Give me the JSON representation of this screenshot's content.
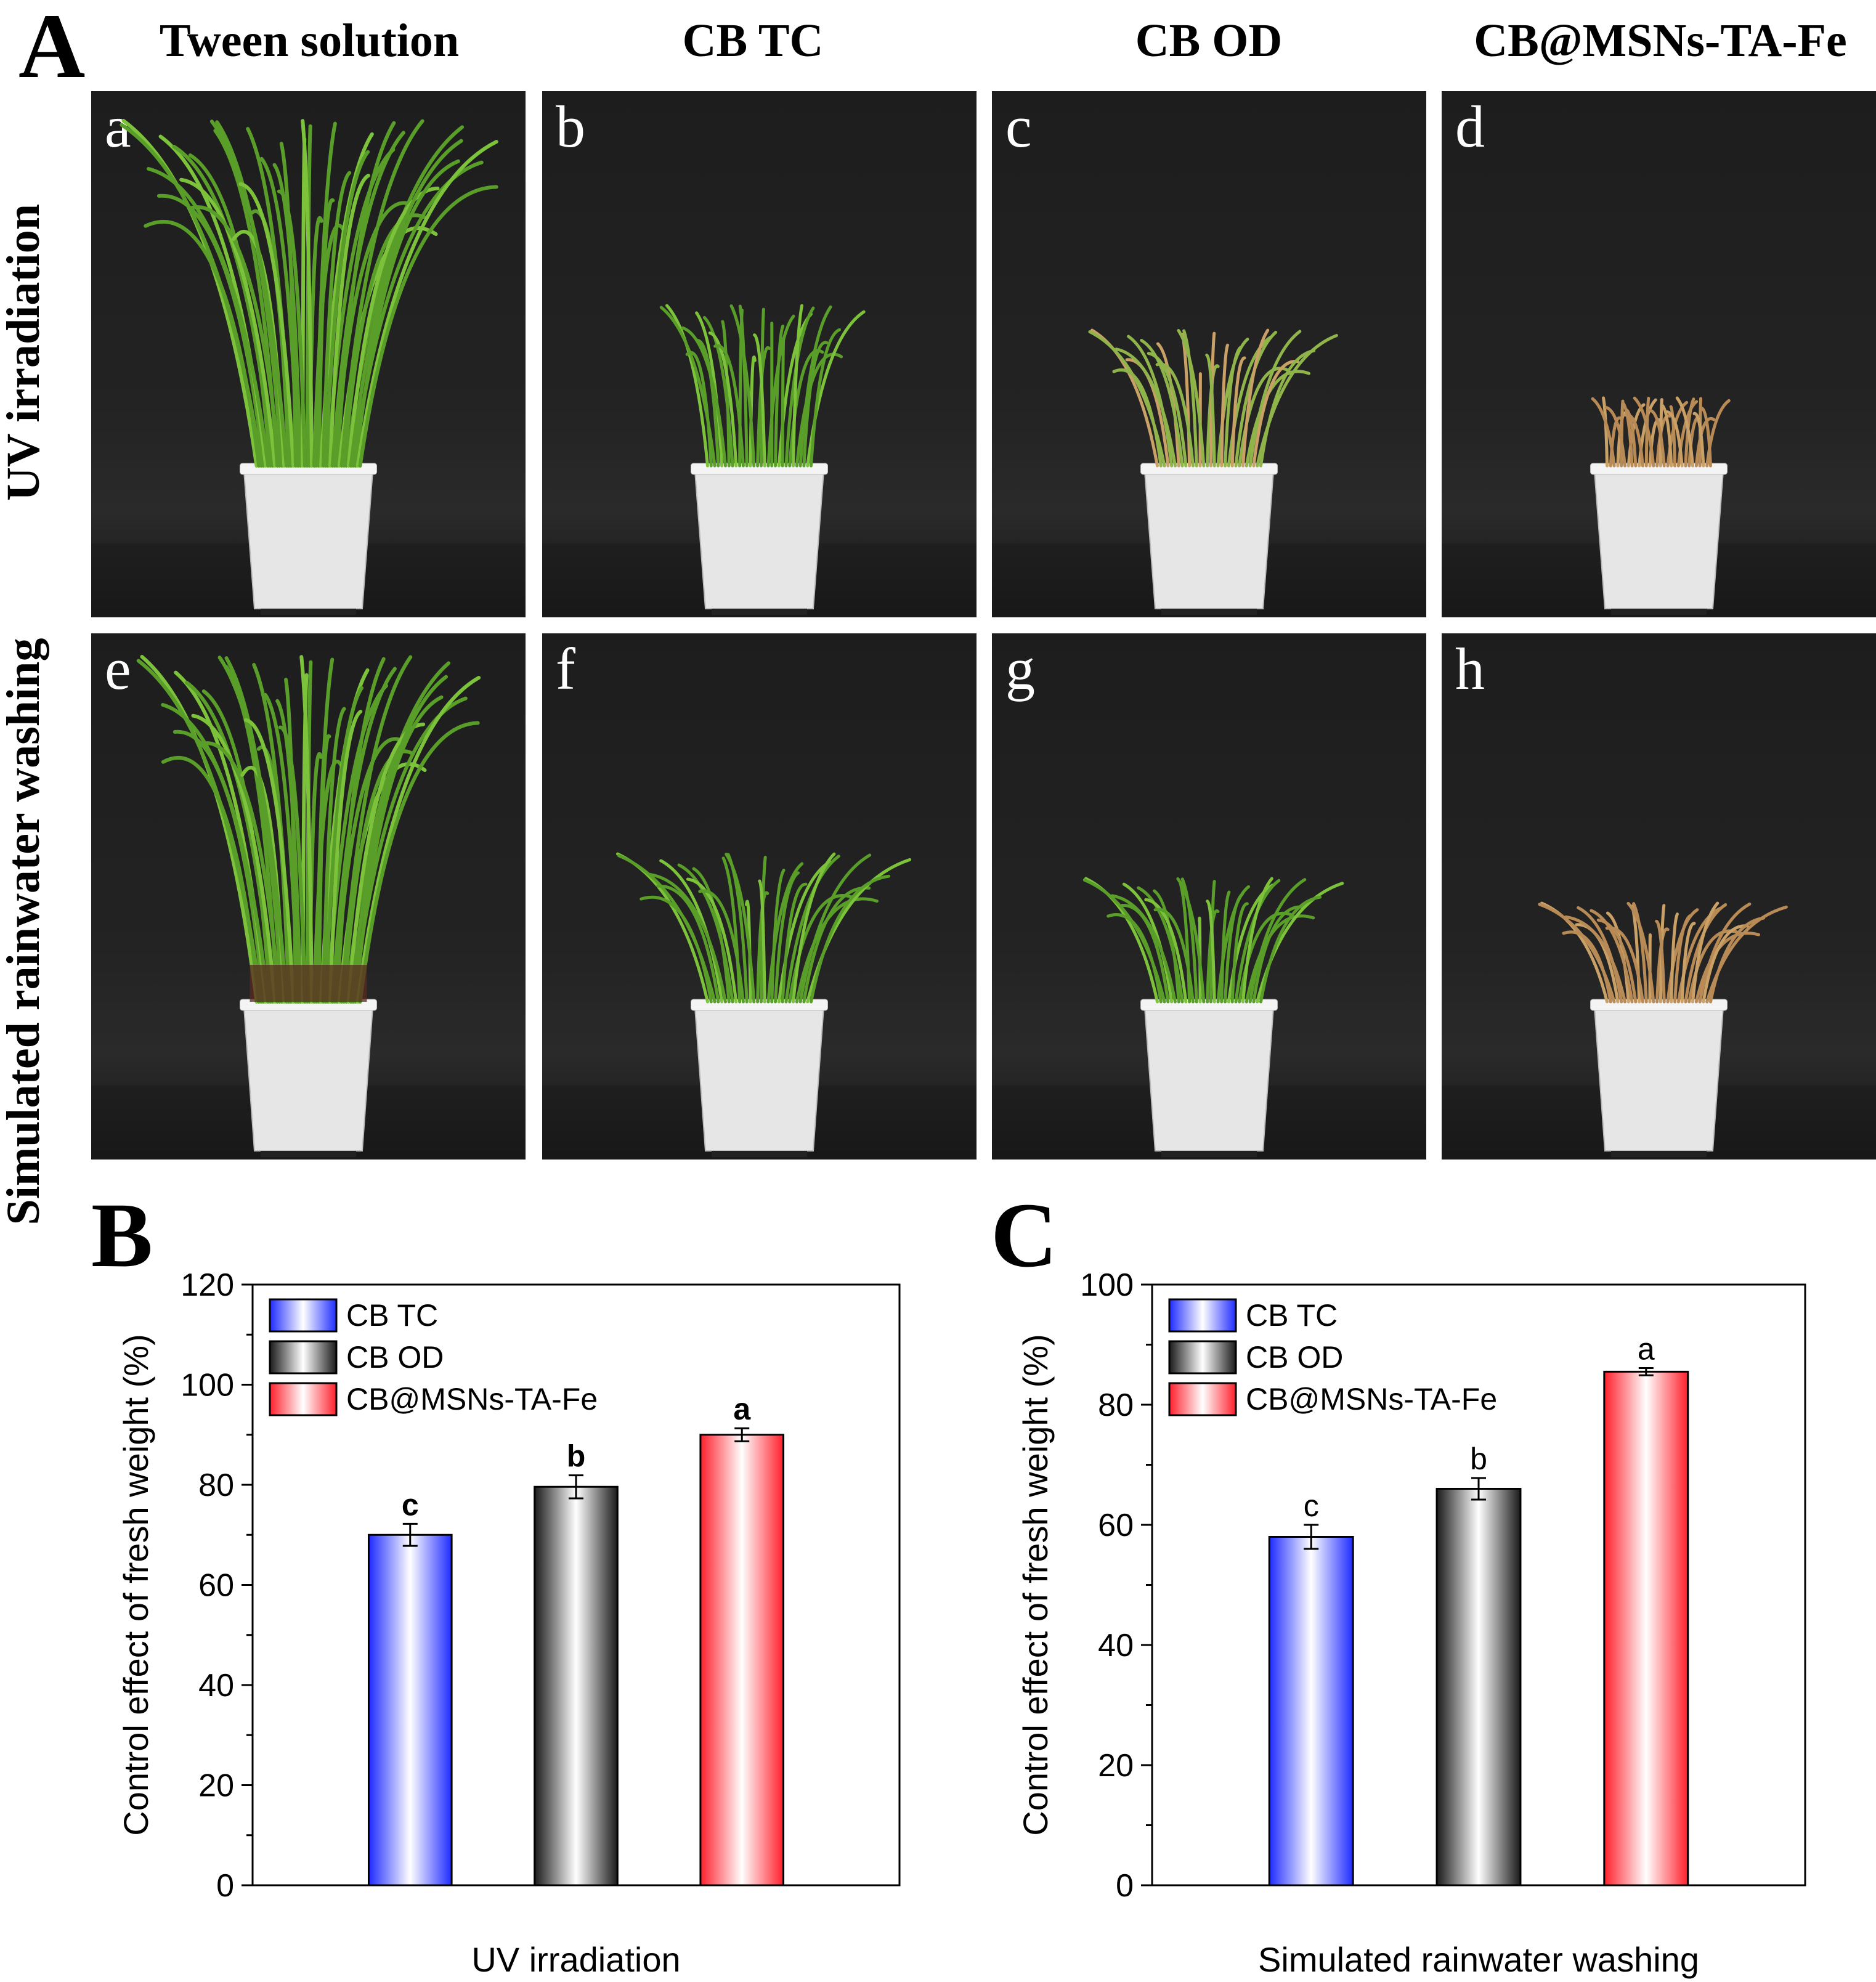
{
  "figure": {
    "panel_A_letter": "A",
    "panel_B_letter": "B",
    "panel_C_letter": "C",
    "column_titles": [
      "Tween solution",
      "CB TC",
      "CB OD",
      "CB@MSNs-TA-Fe"
    ],
    "row_titles": [
      "UV irradiation",
      "Simulated rainwater washing"
    ],
    "photo_letters": [
      "a",
      "b",
      "c",
      "d",
      "e",
      "f",
      "g",
      "h"
    ]
  },
  "colors": {
    "blue": "#1f2bff",
    "black": "#1a1a1a",
    "red": "#ff1f2b",
    "plant_green": "#5a9e2a",
    "plant_dry": "#c9a066",
    "pot": "#e6e6e6"
  },
  "chart_data": [
    {
      "type": "bar",
      "panel": "B",
      "categories": [
        "CB TC",
        "CB OD",
        "CB@MSNs-TA-Fe"
      ],
      "values": [
        70,
        79.6,
        90
      ],
      "errors": [
        2.2,
        2.3,
        1.3
      ],
      "significance": [
        "c",
        "b",
        "a"
      ],
      "xlabel": "UV irradiation",
      "ylabel": "Control effect of fresh weight (%)",
      "ylim": [
        0,
        120
      ],
      "yticks": [
        0,
        20,
        40,
        60,
        80,
        100,
        120
      ],
      "legend": [
        "CB TC",
        "CB OD",
        "CB@MSNs-TA-Fe"
      ],
      "legend_position": "top-left"
    },
    {
      "type": "bar",
      "panel": "C",
      "categories": [
        "CB TC",
        "CB OD",
        "CB@MSNs-TA-Fe"
      ],
      "values": [
        58,
        66,
        85.5
      ],
      "errors": [
        2.0,
        1.8,
        0.6
      ],
      "significance": [
        "c",
        "b",
        "a"
      ],
      "xlabel": "Simulated rainwater washing",
      "ylabel": "Control effect of fresh weight (%)",
      "ylim": [
        0,
        100
      ],
      "yticks": [
        0,
        20,
        40,
        60,
        80,
        100
      ],
      "legend": [
        "CB TC",
        "CB OD",
        "CB@MSNs-TA-Fe"
      ],
      "legend_position": "top-left"
    }
  ]
}
